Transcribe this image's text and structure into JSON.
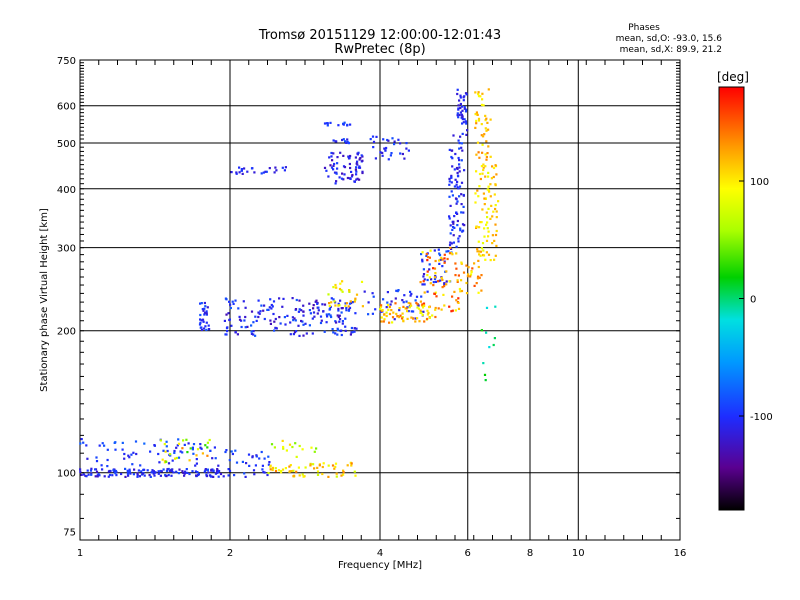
{
  "chart_data": {
    "type": "scatter",
    "title": "Tromsø 20151129 12:00:00-12:01:43",
    "subtitle": "RwPretec (8p)",
    "xlabel": "Frequency [MHz]",
    "ylabel": "Stationary phase Virtual Height [km]",
    "x_scale": "log2",
    "y_scale": "log",
    "xlim": [
      1,
      16
    ],
    "ylim": [
      72,
      750
    ],
    "x_ticks": [
      1,
      2,
      4,
      6,
      8,
      10,
      16
    ],
    "x_tick_labels": [
      "1",
      "2",
      "4",
      "6",
      "8",
      "10",
      "16"
    ],
    "y_ticks": [
      75,
      100,
      200,
      300,
      400,
      500,
      600,
      750
    ],
    "y_tick_labels": [
      "75",
      "100",
      "200",
      "300",
      "400",
      "500",
      "600",
      "750"
    ],
    "x_gridlines": [
      2,
      4,
      6,
      8,
      10
    ],
    "y_gridlines": [
      100,
      200,
      300,
      400,
      500,
      600
    ],
    "stats": {
      "header": "Phases",
      "line1": "mean, sd,O:  -93.0, 15.6",
      "line2": "mean, sd,X:   89.9, 21.2"
    },
    "colorbar": {
      "label": "[deg]",
      "min": -180,
      "max": 180,
      "ticks": [
        100,
        0,
        -100
      ],
      "tick_labels": [
        "100",
        "0",
        "-100"
      ]
    },
    "series": [
      {
        "segments": [
          {
            "x0": 1.0,
            "x1": 1.95,
            "h0": 98,
            "h1": 102,
            "p0": -125,
            "p1": -85,
            "n": 140
          },
          {
            "x0": 1.0,
            "x1": 1.9,
            "h0": 103,
            "h1": 118,
            "p0": -115,
            "p1": -75,
            "n": 70
          },
          {
            "x0": 1.95,
            "x1": 2.4,
            "h0": 98,
            "h1": 112,
            "p0": -115,
            "p1": -80,
            "n": 35
          },
          {
            "x0": 1.74,
            "x1": 1.82,
            "h0": 200,
            "h1": 230,
            "p0": -120,
            "p1": -80,
            "n": 30
          },
          {
            "x0": 1.95,
            "x1": 3.6,
            "h0": 195,
            "h1": 235,
            "p0": -130,
            "p1": -80,
            "n": 190
          },
          {
            "x0": 2.0,
            "x1": 2.6,
            "h0": 430,
            "h1": 448,
            "p0": -120,
            "p1": -85,
            "n": 25
          },
          {
            "x0": 3.1,
            "x1": 3.7,
            "h0": 410,
            "h1": 480,
            "p0": -135,
            "p1": -90,
            "n": 70
          },
          {
            "x0": 3.1,
            "x1": 3.5,
            "h0": 545,
            "h1": 555,
            "p0": -115,
            "p1": -85,
            "n": 12
          },
          {
            "x0": 3.1,
            "x1": 3.5,
            "h0": 500,
            "h1": 510,
            "p0": -115,
            "p1": -85,
            "n": 12
          },
          {
            "x0": 3.8,
            "x1": 4.6,
            "h0": 460,
            "h1": 520,
            "p0": -120,
            "p1": -85,
            "n": 30
          },
          {
            "x0": 3.7,
            "x1": 5.0,
            "h0": 210,
            "h1": 245,
            "p0": -120,
            "p1": -80,
            "n": 45
          },
          {
            "x0": 4.8,
            "x1": 5.6,
            "h0": 250,
            "h1": 300,
            "p0": -125,
            "p1": -80,
            "n": 40
          },
          {
            "x0": 5.5,
            "x1": 5.9,
            "h0": 300,
            "h1": 520,
            "p0": -125,
            "p1": -85,
            "n": 90
          },
          {
            "x0": 5.7,
            "x1": 5.98,
            "h0": 520,
            "h1": 650,
            "p0": -120,
            "p1": -90,
            "n": 40
          }
        ]
      },
      {
        "segments": [
          {
            "x0": 2.35,
            "x1": 3.6,
            "h0": 98,
            "h1": 105,
            "p0": 70,
            "p1": 140,
            "n": 60
          },
          {
            "x0": 1.45,
            "x1": 1.85,
            "h0": 105,
            "h1": 118,
            "p0": 20,
            "p1": 140,
            "n": 25
          },
          {
            "x0": 2.4,
            "x1": 3.0,
            "h0": 108,
            "h1": 118,
            "p0": 40,
            "p1": 110,
            "n": 15
          },
          {
            "x0": 3.1,
            "x1": 3.7,
            "h0": 225,
            "h1": 255,
            "p0": 60,
            "p1": 130,
            "n": 30
          },
          {
            "x0": 4.0,
            "x1": 5.2,
            "h0": 208,
            "h1": 230,
            "p0": 80,
            "p1": 150,
            "n": 70
          },
          {
            "x0": 4.8,
            "x1": 5.8,
            "h0": 220,
            "h1": 300,
            "p0": 90,
            "p1": 170,
            "n": 70
          },
          {
            "x0": 5.7,
            "x1": 6.4,
            "h0": 240,
            "h1": 280,
            "p0": 90,
            "p1": 160,
            "n": 30
          },
          {
            "x0": 6.2,
            "x1": 6.9,
            "h0": 280,
            "h1": 450,
            "p0": 80,
            "p1": 130,
            "n": 90
          },
          {
            "x0": 6.2,
            "x1": 6.7,
            "h0": 450,
            "h1": 650,
            "p0": 90,
            "p1": 140,
            "n": 45
          },
          {
            "x0": 6.3,
            "x1": 6.9,
            "h0": 150,
            "h1": 230,
            "p0": -20,
            "p1": 20,
            "n": 10
          }
        ]
      }
    ]
  }
}
